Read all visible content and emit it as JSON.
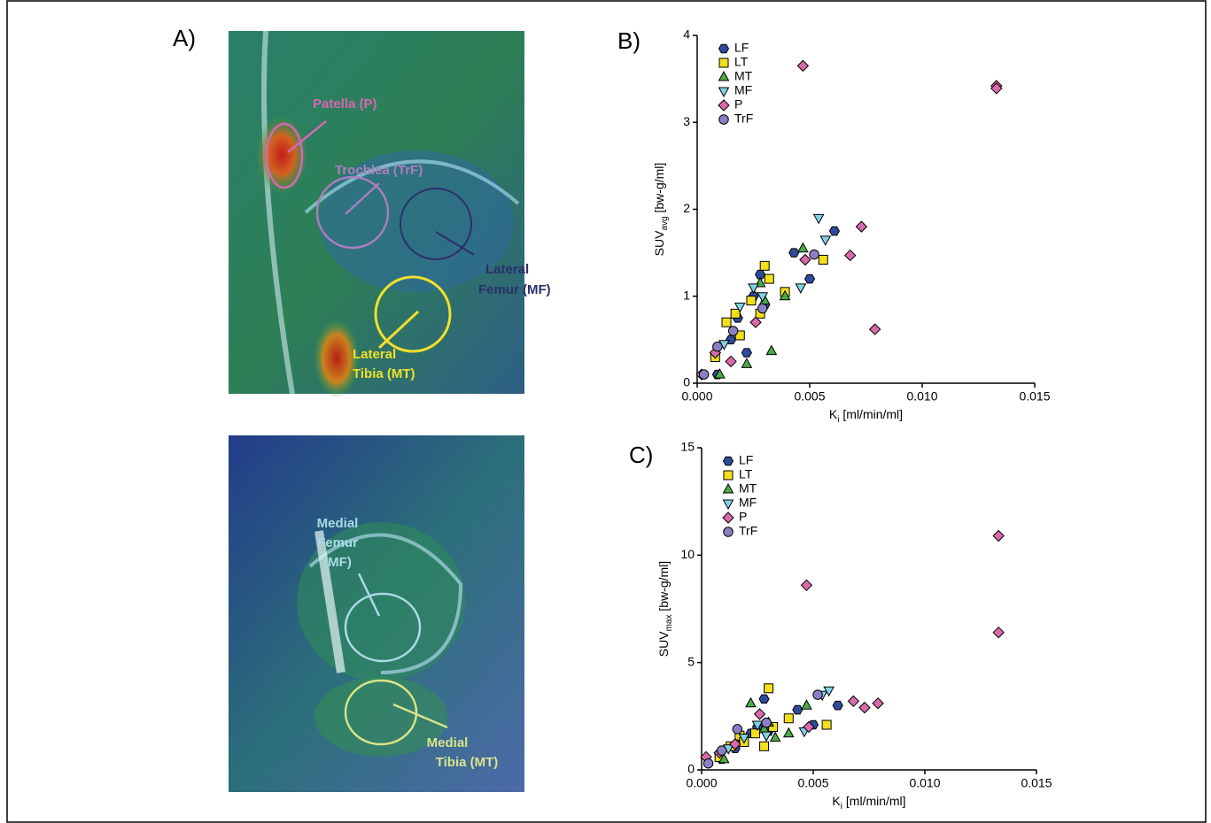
{
  "images": {
    "panel_label": "A)",
    "top_annotations": {
      "patella": [
        "Patella (P)"
      ],
      "trochlea": [
        "Trochlea (TrF)"
      ],
      "lateral_femur": [
        "Lateral",
        "Femur (MF)"
      ],
      "lateral_tibia": [
        "Lateral",
        "Tibia (MT)"
      ]
    },
    "bottom_annotations": {
      "medial_femur": [
        "Medial",
        "Femur",
        "(MF)"
      ],
      "medial_tibia": [
        "Medial",
        "Tibia (MT)"
      ]
    }
  },
  "chart_data": [
    {
      "type": "scatter",
      "panel_label": "B)",
      "xlabel": [
        "K",
        "i",
        " [ml/min/ml]"
      ],
      "ylabel": [
        "SUV",
        "avg",
        " [bw-g/ml]"
      ],
      "xlim": [
        0,
        0.015
      ],
      "ylim": [
        0,
        4
      ],
      "xticks": [
        {
          "value": 0,
          "label": "0.000"
        },
        {
          "value": 0.005,
          "label": "0.005"
        },
        {
          "value": 0.01,
          "label": "0.010"
        },
        {
          "value": 0.015,
          "label": "0.015"
        }
      ],
      "yticks": [
        0,
        1,
        2,
        3,
        4
      ],
      "series": [
        {
          "name": "LF",
          "color": "#2f4b9c",
          "marker": "hexagon",
          "x": [
            0.0009,
            0.0015,
            0.0018,
            0.0022,
            0.0025,
            0.0028,
            0.003,
            0.0043,
            0.005,
            0.0061
          ],
          "values": [
            0.1,
            0.5,
            0.75,
            0.35,
            1.0,
            1.25,
            0.9,
            1.5,
            1.2,
            1.75
          ]
        },
        {
          "name": "LT",
          "color": "#f3e01c",
          "marker": "square",
          "x": [
            0.0008,
            0.0013,
            0.0017,
            0.0019,
            0.0024,
            0.0028,
            0.003,
            0.0032,
            0.0039,
            0.0056
          ],
          "values": [
            0.3,
            0.7,
            0.8,
            0.55,
            0.95,
            0.8,
            1.35,
            1.2,
            1.05,
            1.42
          ]
        },
        {
          "name": "MT",
          "color": "#4cab48",
          "marker": "triangle",
          "x": [
            0.001,
            0.0022,
            0.0028,
            0.003,
            0.0033,
            0.0039,
            0.0047
          ],
          "values": [
            0.1,
            0.22,
            1.15,
            0.95,
            0.37,
            1.0,
            1.55
          ]
        },
        {
          "name": "MF",
          "color": "#80d4e8",
          "marker": "triangle-down",
          "x": [
            0.0012,
            0.0019,
            0.0025,
            0.0029,
            0.0046,
            0.0054,
            0.0057
          ],
          "values": [
            0.45,
            0.88,
            1.1,
            1.0,
            1.1,
            1.9,
            1.65
          ]
        },
        {
          "name": "P",
          "color": "#d96aa9",
          "marker": "diamond",
          "x": [
            0.0002,
            0.0008,
            0.0015,
            0.0026,
            0.0047,
            0.0048,
            0.0068,
            0.0073,
            0.0079,
            0.0133,
            0.0133
          ],
          "values": [
            0.1,
            0.35,
            0.25,
            0.7,
            3.65,
            1.42,
            1.47,
            1.8,
            0.62,
            3.42,
            3.39
          ]
        },
        {
          "name": "TrF",
          "color": "#8b80c5",
          "marker": "circle",
          "x": [
            0.0003,
            0.0009,
            0.0016,
            0.0029,
            0.0052
          ],
          "values": [
            0.1,
            0.42,
            0.6,
            0.86,
            1.48
          ]
        }
      ]
    },
    {
      "type": "scatter",
      "panel_label": "C)",
      "xlabel": [
        "K",
        "i",
        " [ml/min/ml]"
      ],
      "ylabel": [
        "SUV",
        "max",
        " [bw-g/ml]"
      ],
      "xlim": [
        0,
        0.015
      ],
      "ylim": [
        0,
        15
      ],
      "xticks": [
        {
          "value": 0,
          "label": "0.000"
        },
        {
          "value": 0.005,
          "label": "0.005"
        },
        {
          "value": 0.01,
          "label": "0.010"
        },
        {
          "value": 0.015,
          "label": "0.015"
        }
      ],
      "yticks": [
        0,
        5,
        10,
        15
      ],
      "series": [
        {
          "name": "LF",
          "color": "#2f4b9c",
          "marker": "hexagon",
          "x": [
            0.0009,
            0.0015,
            0.0018,
            0.0022,
            0.0025,
            0.0028,
            0.003,
            0.0043,
            0.005,
            0.0061
          ],
          "values": [
            0.5,
            1.0,
            1.5,
            1.7,
            2.0,
            3.3,
            1.8,
            2.8,
            2.1,
            3.0
          ]
        },
        {
          "name": "LT",
          "color": "#f3e01c",
          "marker": "square",
          "x": [
            0.0008,
            0.0013,
            0.0017,
            0.0019,
            0.0024,
            0.0028,
            0.003,
            0.0032,
            0.0039,
            0.0056
          ],
          "values": [
            0.6,
            1.1,
            1.6,
            1.3,
            1.7,
            1.1,
            3.8,
            2.0,
            2.4,
            2.1
          ]
        },
        {
          "name": "MT",
          "color": "#4cab48",
          "marker": "triangle",
          "x": [
            0.001,
            0.0022,
            0.0028,
            0.003,
            0.0033,
            0.0039,
            0.0047
          ],
          "values": [
            0.5,
            3.1,
            1.9,
            2.2,
            1.5,
            1.7,
            3.0
          ]
        },
        {
          "name": "MF",
          "color": "#80d4e8",
          "marker": "triangle-down",
          "x": [
            0.0012,
            0.0019,
            0.0025,
            0.0029,
            0.0046,
            0.0054,
            0.0057
          ],
          "values": [
            1.0,
            1.5,
            2.1,
            1.6,
            1.8,
            3.5,
            3.7
          ]
        },
        {
          "name": "P",
          "color": "#d96aa9",
          "marker": "diamond",
          "x": [
            0.0002,
            0.0008,
            0.0015,
            0.0026,
            0.0047,
            0.0048,
            0.0068,
            0.0073,
            0.0079,
            0.0133,
            0.0133
          ],
          "values": [
            0.6,
            0.8,
            1.2,
            2.6,
            8.6,
            2.0,
            3.2,
            2.9,
            3.1,
            10.9,
            6.4
          ]
        },
        {
          "name": "TrF",
          "color": "#8b80c5",
          "marker": "circle",
          "x": [
            0.0003,
            0.0009,
            0.0016,
            0.0029,
            0.0052
          ],
          "values": [
            0.3,
            0.9,
            1.9,
            2.2,
            3.5
          ]
        }
      ]
    }
  ]
}
